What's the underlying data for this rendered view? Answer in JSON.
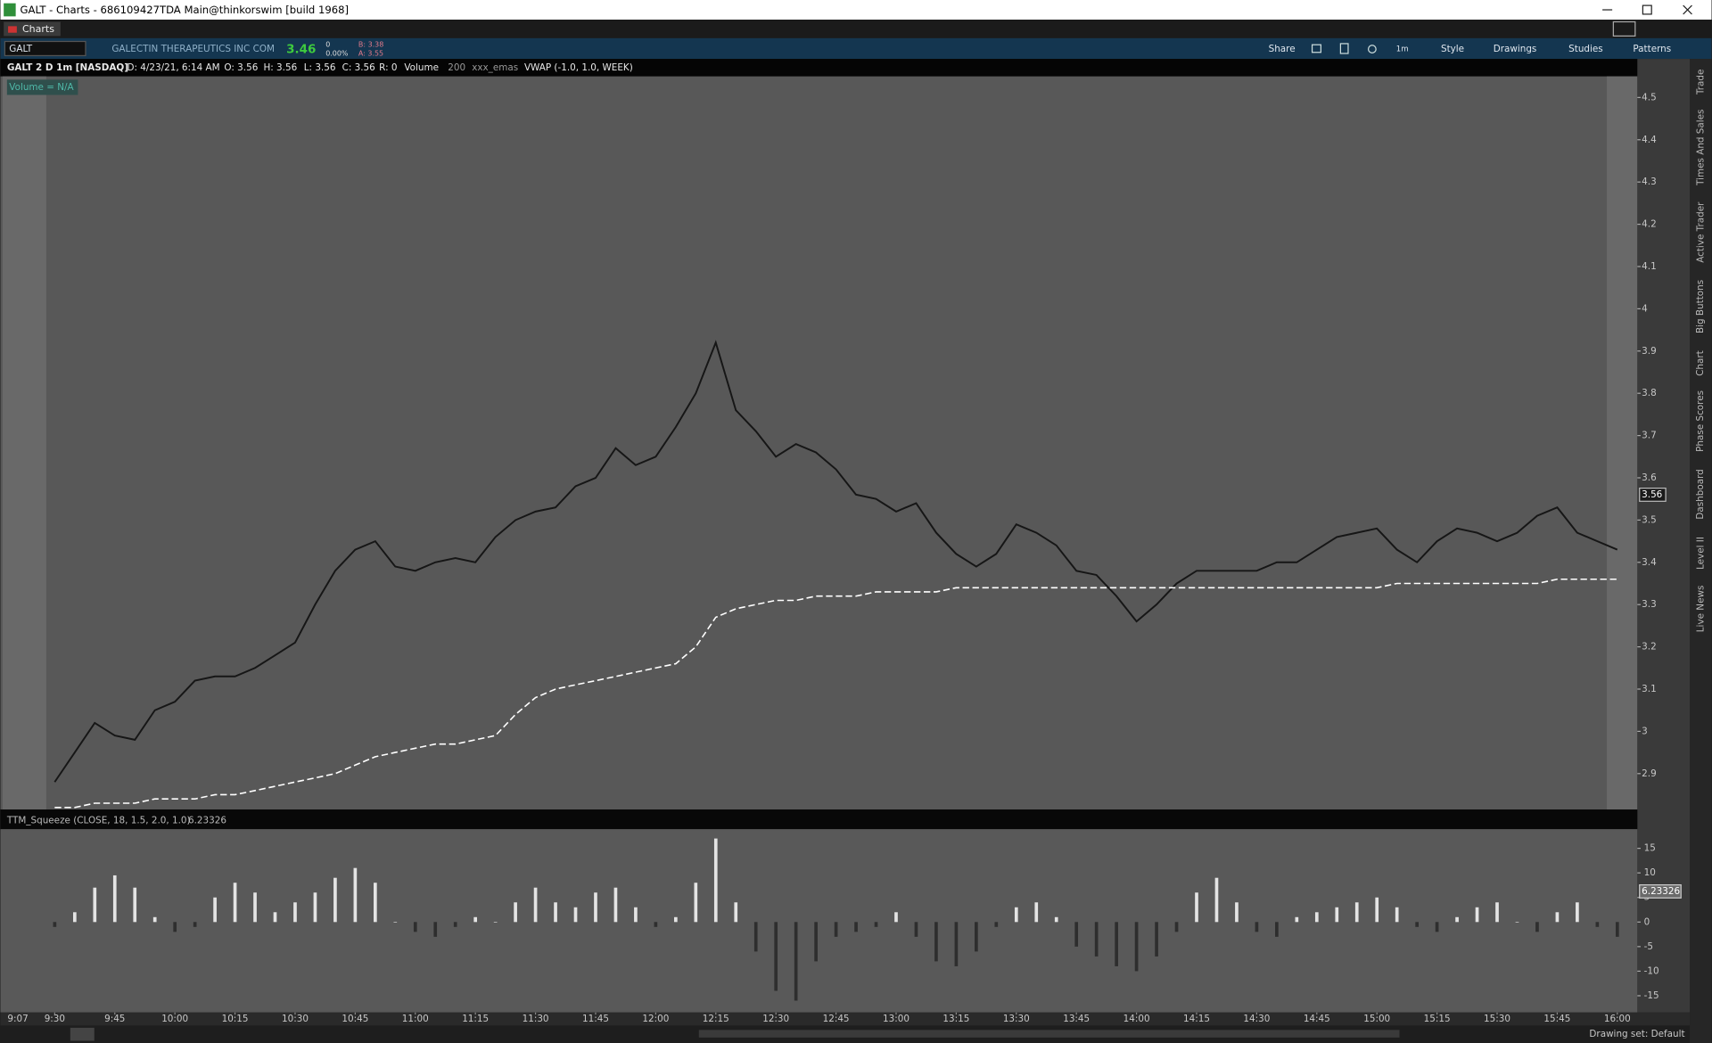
{
  "window": {
    "title": "GALT - Charts - 686109427TDA Main@thinkorswim [build 1968]"
  },
  "tabs": [
    "Charts"
  ],
  "toolbar": {
    "symbol": "GALT",
    "company": "GALECTIN THERAPEUTICS INC COM",
    "last": "3.46",
    "change": "0",
    "change_pct": "0.00%",
    "bid": "B: 3.38",
    "ask": "A: 3.55",
    "buttons": [
      "Share",
      "1m",
      "Style",
      "Drawings",
      "Studies",
      "Patterns"
    ]
  },
  "header": {
    "fields": [
      "GALT 2 D 1m [NASDAQ]",
      "D: 4/23/21, 6:14 AM",
      "O: 3.56",
      "H: 3.56",
      "L: 3.56",
      "C: 3.56",
      "R: 0",
      "Volume",
      "200",
      "xxx_emas"
    ]
  },
  "side_tabs": [
    "Trade",
    "Times And Sales",
    "Active Trader",
    "Big Buttons",
    "Chart",
    "Phase Scores",
    "Dashboard",
    "Level II",
    "Live News"
  ],
  "status": {
    "drawing_set": "Drawing set: Default"
  },
  "chart_data": [
    {
      "type": "line",
      "annotations": {
        "volume": "Volume = N/A",
        "premarket_time": "9:07"
      },
      "last_price": 3.56,
      "xlim": [
        "9:17",
        "16:05"
      ],
      "ylim": [
        2.815,
        4.55
      ],
      "yticks": [
        2.9,
        3,
        3.1,
        3.2,
        3.3,
        3.4,
        3.5,
        3.6,
        3.7,
        3.8,
        3.9,
        4,
        4.1,
        4.2,
        4.3,
        4.4,
        4.5
      ],
      "x": [
        "9:30",
        "9:35",
        "9:40",
        "9:45",
        "9:50",
        "9:55",
        "10:00",
        "10:05",
        "10:10",
        "10:15",
        "10:20",
        "10:25",
        "10:30",
        "10:35",
        "10:40",
        "10:45",
        "10:50",
        "10:55",
        "11:00",
        "11:05",
        "11:10",
        "11:15",
        "11:20",
        "11:25",
        "11:30",
        "11:35",
        "11:40",
        "11:45",
        "11:50",
        "11:55",
        "12:00",
        "12:05",
        "12:10",
        "12:15",
        "12:20",
        "12:25",
        "12:30",
        "12:35",
        "12:40",
        "12:45",
        "12:50",
        "12:55",
        "13:00",
        "13:05",
        "13:10",
        "13:15",
        "13:20",
        "13:25",
        "13:30",
        "13:35",
        "13:40",
        "13:45",
        "13:50",
        "13:55",
        "14:00",
        "14:05",
        "14:10",
        "14:15",
        "14:20",
        "14:25",
        "14:30",
        "14:35",
        "14:40",
        "14:45",
        "14:50",
        "14:55",
        "15:00",
        "15:05",
        "15:10",
        "15:15",
        "15:20",
        "15:25",
        "15:30",
        "15:35",
        "15:40",
        "15:45",
        "15:50",
        "15:55",
        "16:00"
      ],
      "series": [
        {
          "color": "#161616",
          "dashed": false,
          "values": [
            2.88,
            2.95,
            3.02,
            2.99,
            2.98,
            3.05,
            3.07,
            3.12,
            3.13,
            3.13,
            3.15,
            3.18,
            3.21,
            3.3,
            3.38,
            3.43,
            3.45,
            3.39,
            3.38,
            3.4,
            3.41,
            3.4,
            3.46,
            3.5,
            3.52,
            3.53,
            3.58,
            3.6,
            3.67,
            3.63,
            3.65,
            3.72,
            3.8,
            3.92,
            3.76,
            3.71,
            3.65,
            3.68,
            3.66,
            3.62,
            3.56,
            3.55,
            3.52,
            3.54,
            3.47,
            3.42,
            3.39,
            3.42,
            3.49,
            3.47,
            3.44,
            3.38,
            3.37,
            3.32,
            3.26,
            3.3,
            3.35,
            3.38,
            3.38,
            3.38,
            3.38,
            3.4,
            3.4,
            3.43,
            3.46,
            3.47,
            3.48,
            3.43,
            3.4,
            3.45,
            3.48,
            3.47,
            3.45,
            3.47,
            3.51,
            3.53,
            3.47,
            3.45,
            3.43
          ]
        },
        {
          "name": "VWAP (-1.0, 1.0, WEEK)",
          "color": "#ffffff",
          "dashed": true,
          "values": [
            2.82,
            2.82,
            2.83,
            2.83,
            2.83,
            2.84,
            2.84,
            2.84,
            2.85,
            2.85,
            2.86,
            2.87,
            2.88,
            2.89,
            2.9,
            2.92,
            2.94,
            2.95,
            2.96,
            2.97,
            2.97,
            2.98,
            2.99,
            3.04,
            3.08,
            3.1,
            3.11,
            3.12,
            3.13,
            3.14,
            3.15,
            3.16,
            3.2,
            3.27,
            3.29,
            3.3,
            3.31,
            3.31,
            3.32,
            3.32,
            3.32,
            3.33,
            3.33,
            3.33,
            3.33,
            3.34,
            3.34,
            3.34,
            3.34,
            3.34,
            3.34,
            3.34,
            3.34,
            3.34,
            3.34,
            3.34,
            3.34,
            3.34,
            3.34,
            3.34,
            3.34,
            3.34,
            3.34,
            3.34,
            3.34,
            3.34,
            3.34,
            3.35,
            3.35,
            3.35,
            3.35,
            3.35,
            3.35,
            3.35,
            3.35,
            3.36,
            3.36,
            3.36,
            3.36
          ]
        }
      ]
    },
    {
      "type": "histogram",
      "title": "TTM_Squeeze (CLOSE, 18, 1.5, 2.0, 1.0)",
      "last_value": 6.23326,
      "xlim": [
        "9:17",
        "16:05"
      ],
      "xticks": [
        "9:30",
        "9:45",
        "10:00",
        "10:15",
        "10:30",
        "10:45",
        "11:00",
        "11:15",
        "11:30",
        "11:45",
        "12:00",
        "12:15",
        "12:30",
        "12:45",
        "13:00",
        "13:15",
        "13:30",
        "13:45",
        "14:00",
        "14:15",
        "14:30",
        "14:45",
        "15:00",
        "15:15",
        "15:30",
        "15:45",
        "16:00"
      ],
      "ylim": [
        -18.4,
        18.9
      ],
      "yticks": [
        15,
        10,
        5,
        0,
        -5,
        -10,
        -15
      ],
      "positive_color": "#e4e4e4",
      "negative_color": "#2e2e2e",
      "x": [
        "9:30",
        "9:35",
        "9:40",
        "9:45",
        "9:50",
        "9:55",
        "10:00",
        "10:05",
        "10:10",
        "10:15",
        "10:20",
        "10:25",
        "10:30",
        "10:35",
        "10:40",
        "10:45",
        "10:50",
        "10:55",
        "11:00",
        "11:05",
        "11:10",
        "11:15",
        "11:20",
        "11:25",
        "11:30",
        "11:35",
        "11:40",
        "11:45",
        "11:50",
        "11:55",
        "12:00",
        "12:05",
        "12:10",
        "12:15",
        "12:20",
        "12:25",
        "12:30",
        "12:35",
        "12:40",
        "12:45",
        "12:50",
        "12:55",
        "13:00",
        "13:05",
        "13:10",
        "13:15",
        "13:20",
        "13:25",
        "13:30",
        "13:35",
        "13:40",
        "13:45",
        "13:50",
        "13:55",
        "14:00",
        "14:05",
        "14:10",
        "14:15",
        "14:20",
        "14:25",
        "14:30",
        "14:35",
        "14:40",
        "14:45",
        "14:50",
        "14:55",
        "15:00",
        "15:05",
        "15:10",
        "15:15",
        "15:20",
        "15:25",
        "15:30",
        "15:35",
        "15:40",
        "15:45",
        "15:50",
        "15:55",
        "16:00"
      ],
      "values": [
        -1,
        2,
        7,
        9.5,
        7,
        1,
        -2,
        -1,
        5,
        8,
        6,
        2,
        4,
        6,
        9,
        11,
        8,
        0,
        -2,
        -3,
        -1,
        1,
        0,
        4,
        7,
        4,
        3,
        6,
        7,
        3,
        -1,
        1,
        8,
        17,
        4,
        -6,
        -14,
        -16,
        -8,
        -3,
        -2,
        -1,
        2,
        -3,
        -8,
        -9,
        -6,
        -1,
        3,
        4,
        1,
        -5,
        -7,
        -9,
        -10,
        -7,
        -2,
        6,
        9,
        4,
        -2,
        -3,
        1,
        2,
        3,
        4,
        5,
        3,
        -1,
        -2,
        1,
        3,
        4,
        0,
        -2,
        2,
        4,
        -1,
        -3
      ]
    }
  ]
}
